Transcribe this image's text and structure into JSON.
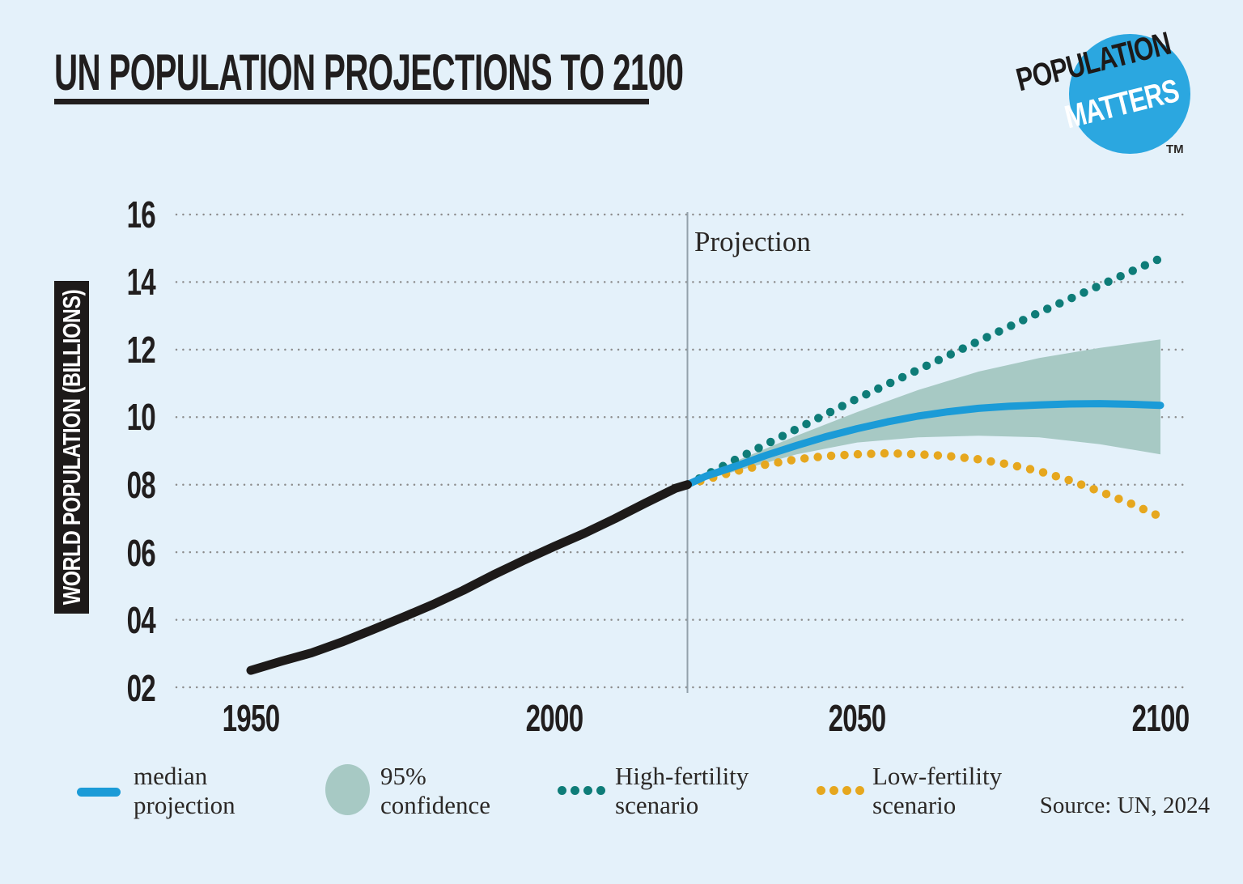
{
  "page": {
    "background": "#e4f1fa"
  },
  "header": {
    "title": "UN POPULATION PROJECTIONS TO 2100"
  },
  "logo": {
    "word1": "POPULATION",
    "word2": "MATTERS",
    "tm": "TM",
    "circle_color": "#2ba7e0"
  },
  "chart_data": {
    "type": "line",
    "title": "UN POPULATION PROJECTIONS TO 2100",
    "ylabel": "WORLD POPULATION (BILLIONS)",
    "annotation": "Projection",
    "x_ticks": [
      "1950",
      "2000",
      "2050",
      "2100"
    ],
    "x_tick_values": [
      1950,
      2000,
      2050,
      2100
    ],
    "y_ticks": [
      "16",
      "14",
      "12",
      "10",
      "08",
      "06",
      "04",
      "02"
    ],
    "y_tick_values": [
      16,
      14,
      12,
      10,
      8,
      6,
      4,
      2
    ],
    "xlim": [
      1950,
      2100
    ],
    "ylim": [
      2,
      16
    ],
    "grid": "dotted-horizontal",
    "gridline_color": "#8d8d8d",
    "projection_divider_color": "#93a1ab",
    "projection_start_year": 2022,
    "legend_position": "bottom",
    "series": [
      {
        "name": "historical",
        "style": "solid",
        "color": "#1d1a19",
        "width": 11,
        "points": [
          [
            1950,
            2.5
          ],
          [
            1955,
            2.77
          ],
          [
            1960,
            3.02
          ],
          [
            1965,
            3.34
          ],
          [
            1970,
            3.7
          ],
          [
            1975,
            4.07
          ],
          [
            1980,
            4.45
          ],
          [
            1985,
            4.87
          ],
          [
            1990,
            5.33
          ],
          [
            1995,
            5.76
          ],
          [
            2000,
            6.17
          ],
          [
            2005,
            6.56
          ],
          [
            2010,
            6.99
          ],
          [
            2015,
            7.45
          ],
          [
            2020,
            7.89
          ],
          [
            2022,
            8.0
          ]
        ]
      },
      {
        "name": "median projection",
        "style": "solid",
        "color": "#1b9bd7",
        "width": 9,
        "points": [
          [
            2022,
            8.0
          ],
          [
            2025,
            8.25
          ],
          [
            2030,
            8.55
          ],
          [
            2035,
            8.87
          ],
          [
            2040,
            9.16
          ],
          [
            2045,
            9.43
          ],
          [
            2050,
            9.66
          ],
          [
            2055,
            9.86
          ],
          [
            2060,
            10.03
          ],
          [
            2065,
            10.16
          ],
          [
            2070,
            10.26
          ],
          [
            2075,
            10.32
          ],
          [
            2080,
            10.36
          ],
          [
            2085,
            10.39
          ],
          [
            2090,
            10.4
          ],
          [
            2095,
            10.38
          ],
          [
            2100,
            10.35
          ]
        ]
      },
      {
        "name": "High-fertility scenario",
        "style": "dotted",
        "color": "#0e7c78",
        "width": 10.5,
        "points": [
          [
            2022,
            8.0
          ],
          [
            2030,
            8.75
          ],
          [
            2040,
            9.65
          ],
          [
            2050,
            10.55
          ],
          [
            2060,
            11.4
          ],
          [
            2070,
            12.25
          ],
          [
            2080,
            13.1
          ],
          [
            2090,
            13.9
          ],
          [
            2100,
            14.7
          ]
        ]
      },
      {
        "name": "Low-fertility scenario",
        "style": "dotted",
        "color": "#e6a71e",
        "width": 10.5,
        "points": [
          [
            2022,
            8.0
          ],
          [
            2030,
            8.4
          ],
          [
            2035,
            8.6
          ],
          [
            2040,
            8.75
          ],
          [
            2045,
            8.85
          ],
          [
            2050,
            8.9
          ],
          [
            2055,
            8.93
          ],
          [
            2060,
            8.9
          ],
          [
            2065,
            8.85
          ],
          [
            2070,
            8.75
          ],
          [
            2075,
            8.6
          ],
          [
            2080,
            8.4
          ],
          [
            2085,
            8.13
          ],
          [
            2090,
            7.8
          ],
          [
            2095,
            7.45
          ],
          [
            2100,
            7.05
          ]
        ]
      }
    ],
    "band": {
      "name": "95% confidence",
      "color": "#a7c9c4",
      "upper": [
        [
          2022,
          8.0
        ],
        [
          2030,
          8.7
        ],
        [
          2040,
          9.45
        ],
        [
          2050,
          10.15
        ],
        [
          2060,
          10.8
        ],
        [
          2070,
          11.35
        ],
        [
          2080,
          11.75
        ],
        [
          2090,
          12.05
        ],
        [
          2100,
          12.3
        ]
      ],
      "lower": [
        [
          2022,
          8.0
        ],
        [
          2030,
          8.4
        ],
        [
          2040,
          8.9
        ],
        [
          2050,
          9.25
        ],
        [
          2060,
          9.4
        ],
        [
          2070,
          9.45
        ],
        [
          2080,
          9.4
        ],
        [
          2090,
          9.2
        ],
        [
          2100,
          8.9
        ]
      ]
    }
  },
  "legend": {
    "items": [
      {
        "swatch": "line",
        "color": "#1b9bd7",
        "lines": [
          "median",
          "projection"
        ]
      },
      {
        "swatch": "circle",
        "color": "#a7c9c4",
        "lines": [
          "95%",
          "confidence"
        ]
      },
      {
        "swatch": "dots",
        "color": "#0e7c78",
        "lines": [
          "High-fertility",
          "scenario"
        ]
      },
      {
        "swatch": "dots",
        "color": "#e6a71e",
        "lines": [
          "Low-fertility",
          "scenario"
        ]
      }
    ],
    "source": "Source: UN, 2024"
  }
}
